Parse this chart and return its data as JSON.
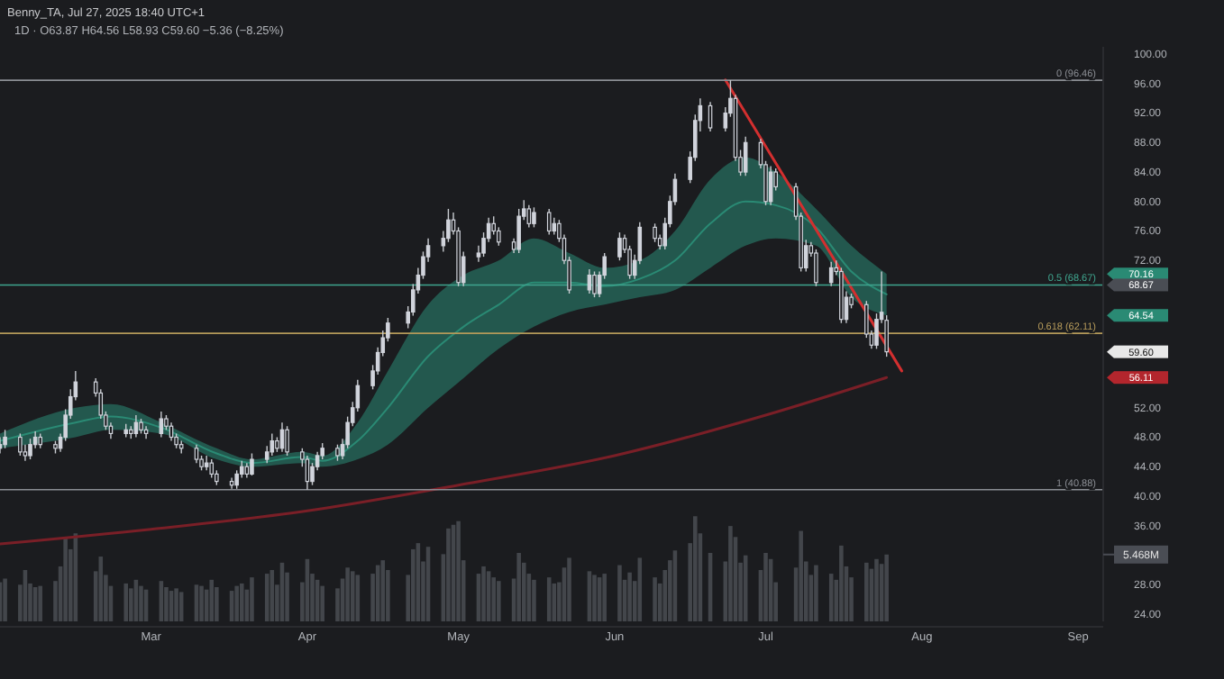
{
  "chart_data": {
    "type": "candlestick",
    "title": "Benny_TA, Jul 27, 2025 18:40 UTC+1",
    "subtitle": "1D · O63.87 H64.56 L58.93 C59.60 −5.36 (−8.25%)",
    "x": [
      "2025-01-30",
      "2025-01-31",
      "2025-02-03",
      "2025-02-04",
      "2025-02-05",
      "2025-02-06",
      "2025-02-07",
      "2025-02-10",
      "2025-02-11",
      "2025-02-12",
      "2025-02-13",
      "2025-02-14",
      "2025-02-18",
      "2025-02-19",
      "2025-02-20",
      "2025-02-21",
      "2025-02-24",
      "2025-02-25",
      "2025-02-26",
      "2025-02-27",
      "2025-02-28",
      "2025-03-03",
      "2025-03-04",
      "2025-03-05",
      "2025-03-06",
      "2025-03-07",
      "2025-03-10",
      "2025-03-11",
      "2025-03-12",
      "2025-03-13",
      "2025-03-14",
      "2025-03-17",
      "2025-03-18",
      "2025-03-19",
      "2025-03-20",
      "2025-03-21",
      "2025-03-24",
      "2025-03-25",
      "2025-03-26",
      "2025-03-27",
      "2025-03-28",
      "2025-03-31",
      "2025-04-01",
      "2025-04-02",
      "2025-04-03",
      "2025-04-04",
      "2025-04-07",
      "2025-04-08",
      "2025-04-09",
      "2025-04-10",
      "2025-04-11",
      "2025-04-14",
      "2025-04-15",
      "2025-04-16",
      "2025-04-17",
      "2025-04-21",
      "2025-04-22",
      "2025-04-23",
      "2025-04-24",
      "2025-04-25",
      "2025-04-28",
      "2025-04-29",
      "2025-04-30",
      "2025-05-01",
      "2025-05-02",
      "2025-05-05",
      "2025-05-06",
      "2025-05-07",
      "2025-05-08",
      "2025-05-09",
      "2025-05-12",
      "2025-05-13",
      "2025-05-14",
      "2025-05-15",
      "2025-05-16",
      "2025-05-19",
      "2025-05-20",
      "2025-05-21",
      "2025-05-22",
      "2025-05-23",
      "2025-05-27",
      "2025-05-28",
      "2025-05-29",
      "2025-05-30",
      "2025-06-02",
      "2025-06-03",
      "2025-06-04",
      "2025-06-05",
      "2025-06-06",
      "2025-06-09",
      "2025-06-10",
      "2025-06-11",
      "2025-06-12",
      "2025-06-13",
      "2025-06-16",
      "2025-06-17",
      "2025-06-18",
      "2025-06-20",
      "2025-06-23",
      "2025-06-24",
      "2025-06-25",
      "2025-06-26",
      "2025-06-27",
      "2025-06-30",
      "2025-07-01",
      "2025-07-02",
      "2025-07-03",
      "2025-07-07",
      "2025-07-08",
      "2025-07-09",
      "2025-07-10",
      "2025-07-11",
      "2025-07-14",
      "2025-07-15",
      "2025-07-16",
      "2025-07-17",
      "2025-07-18",
      "2025-07-21",
      "2025-07-22",
      "2025-07-23",
      "2025-07-24",
      "2025-07-25"
    ],
    "ohlc": [
      [
        46.5,
        48,
        45.8,
        47
      ],
      [
        47,
        49,
        46.5,
        48
      ],
      [
        48,
        48.5,
        45.5,
        46
      ],
      [
        46,
        47,
        44.8,
        45.5
      ],
      [
        45.5,
        47.8,
        45,
        47
      ],
      [
        47,
        48.8,
        46.5,
        48
      ],
      [
        48,
        48.5,
        46.5,
        47
      ],
      [
        47,
        47.5,
        45.8,
        46.5
      ],
      [
        46.5,
        48.5,
        46,
        48
      ],
      [
        48,
        51.8,
        47.5,
        51
      ],
      [
        51,
        54.5,
        50.5,
        53.5
      ],
      [
        53.5,
        57,
        53,
        55.5
      ],
      [
        55.5,
        56,
        53.5,
        54
      ],
      [
        54,
        54.5,
        50.5,
        51
      ],
      [
        51,
        51.5,
        49,
        49.5
      ],
      [
        49.5,
        50,
        47.8,
        48.5
      ],
      [
        48.5,
        49.8,
        48,
        49
      ],
      [
        49,
        49.5,
        47.8,
        48.5
      ],
      [
        48.5,
        51,
        48,
        50
      ],
      [
        50,
        50.5,
        48.5,
        49
      ],
      [
        49,
        49.5,
        47.8,
        48.5
      ],
      [
        48.5,
        51.5,
        48,
        50.5
      ],
      [
        50.5,
        51,
        49,
        49.5
      ],
      [
        49.5,
        50,
        47.5,
        48
      ],
      [
        48,
        48.5,
        46.5,
        47
      ],
      [
        47,
        47.5,
        45.8,
        46.5
      ],
      [
        46.5,
        47,
        44.5,
        45
      ],
      [
        45,
        45.5,
        43.5,
        44
      ],
      [
        44,
        45.5,
        43.5,
        44.5
      ],
      [
        44.5,
        45,
        42.5,
        43
      ],
      [
        43,
        43.5,
        41.5,
        42
      ],
      [
        42,
        42.5,
        41,
        41.5
      ],
      [
        41.5,
        43.5,
        41,
        43
      ],
      [
        43,
        44.8,
        42.5,
        44
      ],
      [
        44,
        44.5,
        42.5,
        43
      ],
      [
        43,
        45.8,
        42.8,
        45
      ],
      [
        45,
        46.8,
        44.5,
        46
      ],
      [
        46,
        48.5,
        45.5,
        47.5
      ],
      [
        47.5,
        48,
        46,
        46.5
      ],
      [
        46.5,
        50,
        46,
        49
      ],
      [
        49,
        49.5,
        45.5,
        46
      ],
      [
        46,
        46.5,
        44,
        45
      ],
      [
        45,
        45.5,
        40.88,
        42
      ],
      [
        42,
        44.5,
        41.5,
        44
      ],
      [
        44,
        46,
        43.5,
        45.5
      ],
      [
        45.5,
        47.2,
        45,
        46.5
      ],
      [
        46.5,
        47,
        44.8,
        45.5
      ],
      [
        45.5,
        47.8,
        45,
        47
      ],
      [
        47,
        50.8,
        46.5,
        50
      ],
      [
        50,
        52.8,
        49.5,
        52
      ],
      [
        52,
        55.8,
        51.5,
        55
      ],
      [
        55,
        57.8,
        54.5,
        57
      ],
      [
        57,
        60.2,
        56.5,
        59.5
      ],
      [
        59.5,
        62.5,
        59,
        61.5
      ],
      [
        61.5,
        64.2,
        61,
        63.5
      ],
      [
        63.5,
        65.8,
        62.8,
        65
      ],
      [
        65,
        68.8,
        64.5,
        68
      ],
      [
        68,
        71,
        67.5,
        70
      ],
      [
        70,
        73.2,
        69.5,
        72.5
      ],
      [
        72.5,
        75,
        71.8,
        74
      ],
      [
        74,
        76,
        73.2,
        75
      ],
      [
        75,
        79,
        74.5,
        77.5
      ],
      [
        77.5,
        78.5,
        75.5,
        76
      ],
      [
        76,
        76.5,
        68.5,
        69
      ],
      [
        69,
        73.2,
        68.5,
        72.5
      ],
      [
        72.5,
        74,
        71.8,
        73
      ],
      [
        73,
        75.8,
        72.5,
        75
      ],
      [
        75,
        77.8,
        74.5,
        77
      ],
      [
        77,
        78,
        75.5,
        76
      ],
      [
        76,
        76.5,
        74,
        74.5
      ],
      [
        74.5,
        75,
        73,
        73.5
      ],
      [
        73.5,
        79,
        73,
        78
      ],
      [
        78,
        80.2,
        77.5,
        79
      ],
      [
        79,
        79.5,
        76.5,
        77
      ],
      [
        77,
        79.2,
        76.5,
        78.5
      ],
      [
        78.5,
        79,
        75.5,
        76
      ],
      [
        76,
        77.8,
        75.5,
        77
      ],
      [
        77,
        77.5,
        74.5,
        75
      ],
      [
        75,
        75.5,
        71.5,
        72
      ],
      [
        72,
        72.5,
        67.5,
        68
      ],
      [
        68,
        70.8,
        67.5,
        70
      ],
      [
        70,
        70.5,
        67,
        67.5
      ],
      [
        67.5,
        70.5,
        67,
        70
      ],
      [
        70,
        73,
        69.5,
        72.5
      ],
      [
        72.5,
        75.8,
        72,
        75
      ],
      [
        75,
        75.5,
        73,
        73.5
      ],
      [
        73.5,
        74,
        69.5,
        70
      ],
      [
        70,
        72.8,
        69.5,
        72
      ],
      [
        72,
        77.2,
        71.5,
        76.5
      ],
      [
        76.5,
        77,
        74.5,
        75
      ],
      [
        75,
        75.5,
        73.5,
        74
      ],
      [
        74,
        77.8,
        73.5,
        77
      ],
      [
        77,
        80.8,
        76.5,
        80
      ],
      [
        80,
        83.8,
        79.5,
        83
      ],
      [
        83,
        86.8,
        82.5,
        86
      ],
      [
        86,
        91.8,
        85.5,
        91
      ],
      [
        91,
        94,
        89.5,
        93
      ],
      [
        93,
        93.5,
        89.5,
        90
      ],
      [
        90,
        92.8,
        89.5,
        92
      ],
      [
        92,
        96.46,
        91.5,
        94
      ],
      [
        94,
        94.5,
        85.5,
        86
      ],
      [
        86,
        87,
        83.5,
        84
      ],
      [
        84,
        88.8,
        83.5,
        88
      ],
      [
        88,
        88.5,
        84.5,
        85
      ],
      [
        85,
        85.5,
        79.5,
        80
      ],
      [
        80,
        84.8,
        79.5,
        84
      ],
      [
        84,
        84.5,
        81.5,
        82
      ],
      [
        82,
        82.5,
        77.5,
        78
      ],
      [
        78,
        78.5,
        70.5,
        71
      ],
      [
        71,
        74.8,
        70.5,
        74
      ],
      [
        74,
        74.5,
        72.5,
        73
      ],
      [
        73,
        73.5,
        68.5,
        69
      ],
      [
        69,
        71.8,
        68.5,
        71
      ],
      [
        71,
        72,
        70,
        70.5
      ],
      [
        70.5,
        71,
        63.5,
        64
      ],
      [
        64,
        67.8,
        63.5,
        67
      ],
      [
        67,
        67.5,
        65.5,
        66
      ],
      [
        66,
        66.5,
        61.5,
        62
      ],
      [
        62,
        62.5,
        60,
        60.5
      ],
      [
        60.5,
        64.8,
        60,
        64
      ],
      [
        64,
        70.5,
        63.5,
        64.96
      ],
      [
        63.87,
        64.56,
        58.93,
        59.6
      ]
    ],
    "series": [
      {
        "type": "bar",
        "axis": "y2",
        "color": "#4a4d54",
        "values": [
          3.2,
          3.5,
          3.0,
          4.2,
          3.1,
          2.8,
          2.9,
          3.3,
          4.5,
          6.8,
          5.9,
          7.2,
          4.1,
          5.3,
          3.8,
          2.9,
          3.1,
          2.7,
          3.4,
          2.9,
          2.6,
          3.3,
          2.8,
          2.5,
          2.7,
          2.4,
          3.0,
          2.9,
          2.6,
          3.4,
          2.8,
          2.5,
          2.9,
          3.1,
          2.6,
          3.6,
          3.9,
          4.2,
          3.0,
          4.8,
          4.0,
          3.2,
          5.1,
          3.9,
          3.4,
          2.9,
          2.7,
          3.5,
          4.4,
          4.1,
          3.8,
          3.9,
          4.6,
          5.0,
          4.2,
          3.8,
          5.9,
          6.4,
          4.9,
          6.1,
          5.5,
          7.6,
          7.9,
          8.2,
          5.0,
          3.9,
          4.5,
          4.1,
          3.6,
          3.3,
          3.5,
          5.6,
          4.8,
          3.9,
          3.4,
          3.6,
          3.1,
          3.2,
          4.4,
          5.2,
          4.1,
          3.8,
          3.6,
          3.9,
          4.6,
          3.4,
          4.0,
          3.3,
          5.2,
          3.6,
          3.1,
          4.2,
          5.0,
          5.8,
          6.4,
          8.6,
          7.2,
          5.6,
          4.9,
          7.8,
          6.9,
          4.8,
          5.4,
          4.2,
          5.6,
          5.1,
          3.2,
          4.4,
          7.4,
          4.9,
          3.8,
          4.6,
          3.9,
          3.4,
          6.2,
          4.5,
          3.6,
          4.8,
          4.3,
          5.1,
          4.7,
          5.468
        ]
      },
      {
        "type": "line",
        "color": "#2a8a74",
        "x": [
          "2025-01-30",
          "2025-02-14",
          "2025-02-21",
          "2025-03-03",
          "2025-03-14",
          "2025-03-21",
          "2025-03-31",
          "2025-04-04",
          "2025-04-11",
          "2025-04-17",
          "2025-04-25",
          "2025-05-02",
          "2025-05-09",
          "2025-05-16",
          "2025-05-23",
          "2025-05-30",
          "2025-06-06",
          "2025-06-13",
          "2025-06-20",
          "2025-06-27",
          "2025-07-03",
          "2025-07-11",
          "2025-07-18",
          "2025-07-25"
        ],
        "values": [
          47.5,
          50,
          50.8,
          49.3,
          45.8,
          44.5,
          45.3,
          44.8,
          47.5,
          52,
          59,
          63,
          66,
          69,
          69,
          68.5,
          69.5,
          72,
          77,
          80,
          79.5,
          76.5,
          70.5,
          67.4
        ],
        "lower": [
          46.5,
          48,
          49,
          48.5,
          45,
          44,
          44.5,
          44,
          45,
          47,
          52,
          56,
          60,
          63,
          65,
          66,
          67,
          68,
          71,
          74,
          75,
          74,
          67,
          64.54
        ],
        "upper": [
          48.5,
          52,
          52.5,
          50,
          46.5,
          45,
          46,
          45.5,
          50,
          57,
          66,
          70,
          72,
          75,
          73,
          71,
          72,
          76,
          83,
          86,
          84,
          79,
          74,
          70.16
        ]
      },
      {
        "type": "line",
        "color": "#7a1f27",
        "x": [
          "2025-01-30",
          "2025-03-01",
          "2025-04-01",
          "2025-05-01",
          "2025-06-01",
          "2025-07-01",
          "2025-07-25"
        ],
        "values": [
          33.5,
          35.5,
          38,
          41.5,
          45.5,
          51,
          56.11
        ]
      },
      {
        "type": "line",
        "color": "#d32f2f",
        "x": [
          "2025-06-23",
          "2025-07-28"
        ],
        "values": [
          96.5,
          57
        ]
      }
    ],
    "ylim": [
      23,
      101
    ],
    "yticks": [
      {
        "value": 24,
        "label": "24.00"
      },
      {
        "value": 28,
        "label": "28.00"
      },
      {
        "value": 36,
        "label": "36.00"
      },
      {
        "value": 40,
        "label": "40.00"
      },
      {
        "value": 44,
        "label": "44.00"
      },
      {
        "value": 48,
        "label": "48.00"
      },
      {
        "value": 52,
        "label": "52.00"
      },
      {
        "value": 72,
        "label": "72.00"
      },
      {
        "value": 76,
        "label": "76.00"
      },
      {
        "value": 80,
        "label": "80.00"
      },
      {
        "value": 84,
        "label": "84.00"
      },
      {
        "value": 88,
        "label": "88.00"
      },
      {
        "value": 92,
        "label": "92.00"
      },
      {
        "value": 96,
        "label": "96.00"
      },
      {
        "value": 100,
        "label": "100.00"
      }
    ],
    "y2lim": [
      0,
      47
    ],
    "y2ticks": [
      {
        "value": 5.468,
        "label": "5.468M"
      }
    ],
    "xlim": [
      "2025-01-30",
      "2025-09-06"
    ],
    "xticks": [
      {
        "value": "2025-03-01",
        "label": "Mar"
      },
      {
        "value": "2025-04-01",
        "label": "Apr"
      },
      {
        "value": "2025-05-01",
        "label": "May"
      },
      {
        "value": "2025-06-01",
        "label": "Jun"
      },
      {
        "value": "2025-07-01",
        "label": "Jul"
      },
      {
        "value": "2025-08-01",
        "label": "Aug"
      },
      {
        "value": "2025-09-01",
        "label": "Sep"
      }
    ],
    "ref_lines": [
      {
        "axis": "y",
        "value": 96.46,
        "label": "0 (96.46)",
        "color": "#8a8d93"
      },
      {
        "axis": "y",
        "value": 68.67,
        "label": "0.5 (68.67)",
        "color": "#3fa58e"
      },
      {
        "axis": "y",
        "value": 62.11,
        "label": "0.618 (62.11)",
        "color": "#b59a5a"
      },
      {
        "axis": "y",
        "value": 40.88,
        "label": "1 (40.88)",
        "color": "#8a8d93"
      }
    ],
    "annotations": [
      "70.16",
      "68.67",
      "64.54",
      "59.60",
      "56.11"
    ]
  }
}
